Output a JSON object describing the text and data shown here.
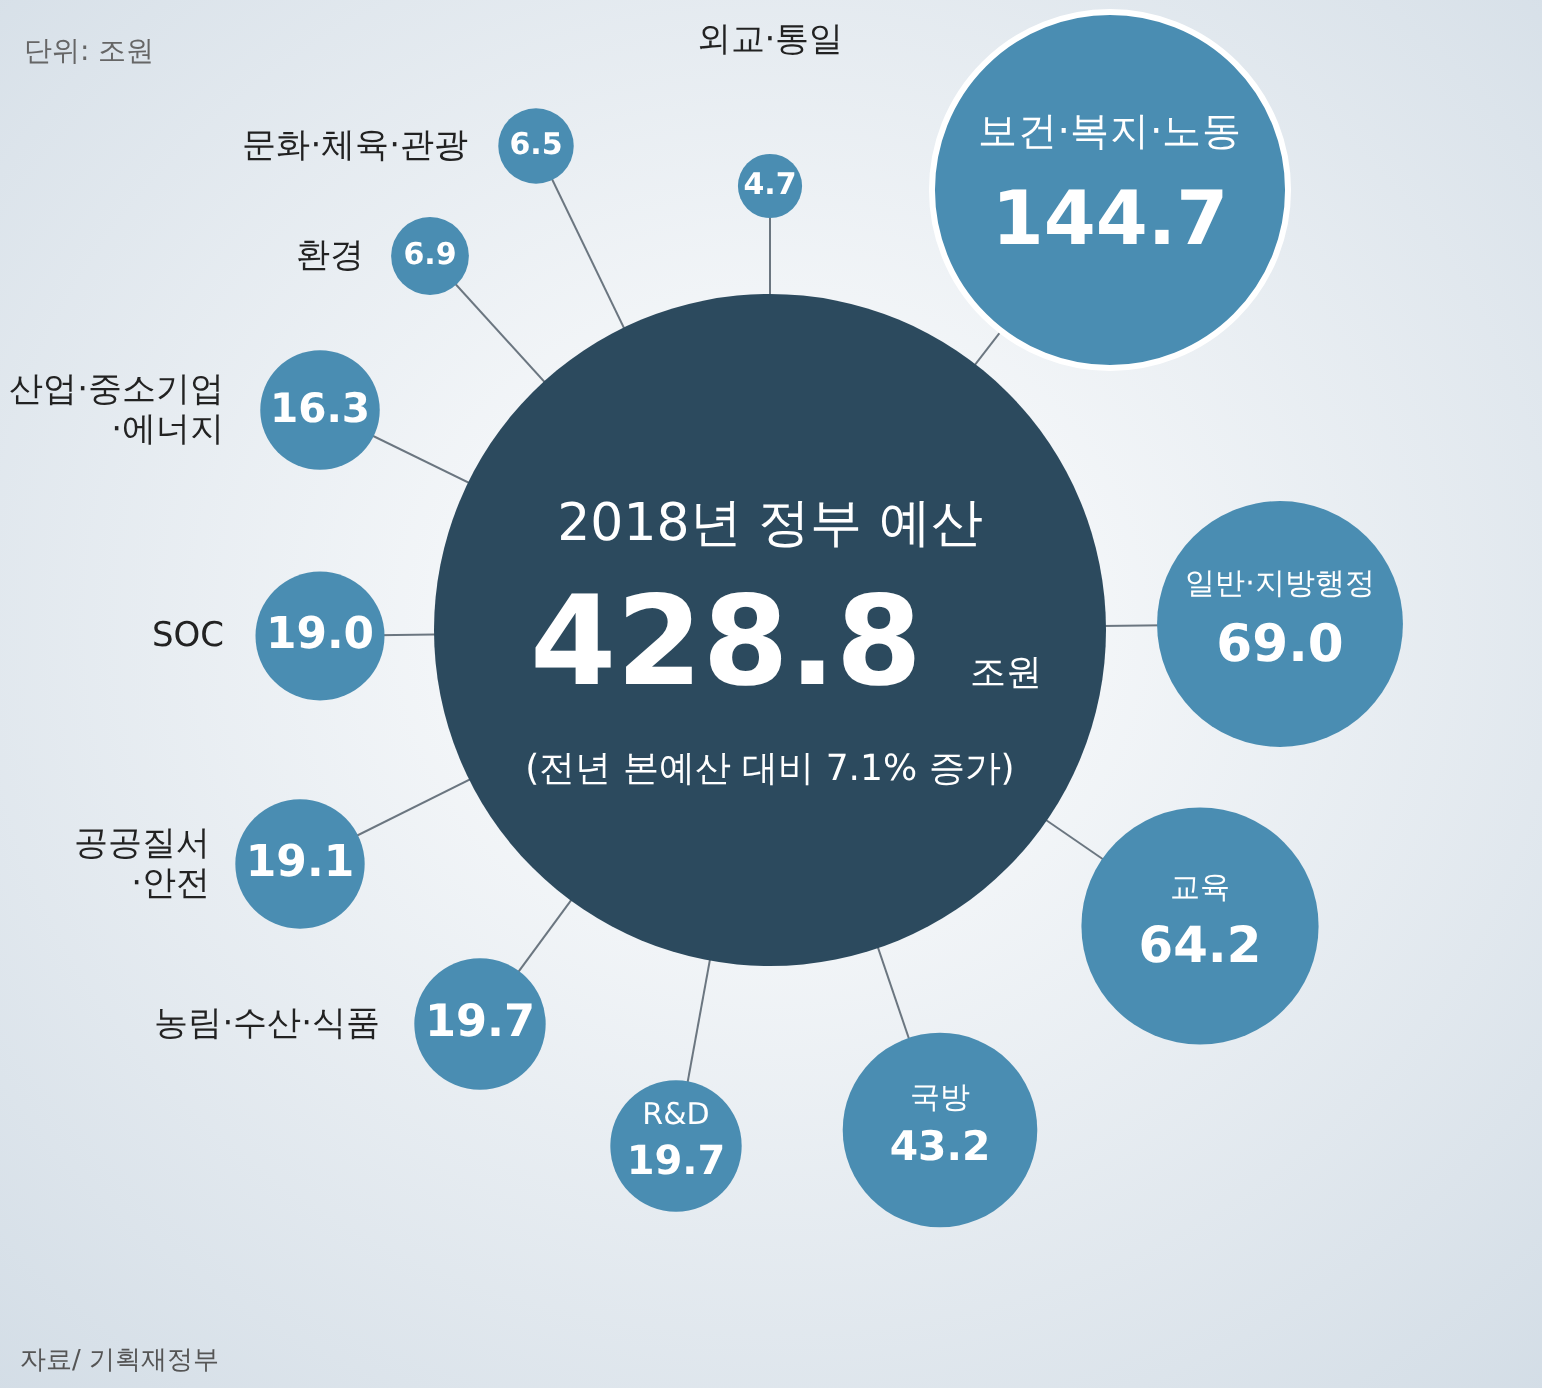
{
  "chart_data": {
    "type": "other",
    "subtitle": "단위: 조원",
    "categories": [
      "외교·통일",
      "보건·복지·노동",
      "일반·지방행정",
      "교육",
      "국방",
      "R&D",
      "농림·수산·식품",
      "공공질서\n·안전",
      "SOC",
      "산업·중소기업\n·에너지",
      "환경",
      "문화·체육·관광"
    ],
    "values": [
      4.7,
      144.7,
      69.0,
      64.2,
      43.2,
      19.7,
      19.7,
      19.1,
      19.0,
      16.3,
      6.9,
      6.5
    ],
    "value_labels": [
      "4.7",
      "144.7",
      "69.0",
      "64.2",
      "43.2",
      "19.7",
      "19.7",
      "19.1",
      "19.0",
      "16.3",
      "6.9",
      "6.5"
    ],
    "color": "#4a8db2",
    "data_labels": true,
    "annotations": [
      "2018년 정부 예산",
      "428.8",
      "조원",
      "(전년 본예산 대비 7.1% 증가)",
      "자료/ 기획재정부"
    ]
  }
}
